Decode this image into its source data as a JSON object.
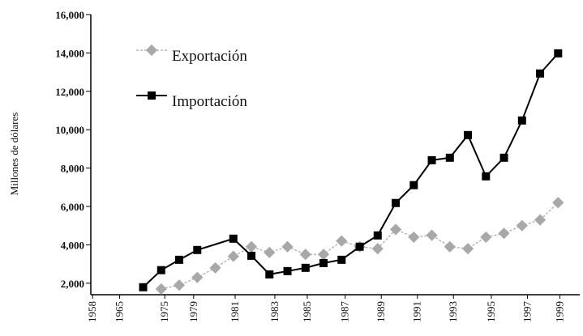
{
  "chart_data": {
    "type": "line",
    "y_axis_label": "Millones de dólares",
    "xlim": [
      1973.1,
      2000.2
    ],
    "xticks": [
      {
        "value": 1973.2,
        "label": "1958"
      },
      {
        "value": 1974.7,
        "label": "1965"
      },
      {
        "value": 1977.2,
        "label": "1975"
      },
      {
        "value": 1978.8,
        "label": "1979"
      },
      {
        "value": 1981.1,
        "label": "1981"
      },
      {
        "value": 1983.3,
        "label": "1983"
      },
      {
        "value": 1985.1,
        "label": "1985"
      },
      {
        "value": 1987.2,
        "label": "1987"
      },
      {
        "value": 1989.2,
        "label": "1989"
      },
      {
        "value": 1991.2,
        "label": "1991"
      },
      {
        "value": 1993.2,
        "label": "1993"
      },
      {
        "value": 1995.3,
        "label": "1995"
      },
      {
        "value": 1997.3,
        "label": "1997"
      },
      {
        "value": 1999.1,
        "label": "1999"
      }
    ],
    "ylim": [
      1400,
      16000
    ],
    "yticks": [
      {
        "value": 2000,
        "label": "2,000"
      },
      {
        "value": 4000,
        "label": "4,000"
      },
      {
        "value": 6000,
        "label": "6,000"
      },
      {
        "value": 8000,
        "label": "8,000"
      },
      {
        "value": 10000,
        "label": "10,000"
      },
      {
        "value": 12000,
        "label": "12,000"
      },
      {
        "value": 14000,
        "label": "14,000"
      },
      {
        "value": 16000,
        "label": "16,000"
      }
    ],
    "series": [
      {
        "name": "Exportación",
        "color": "#a8a8a8",
        "x": [
          1977,
          1978,
          1979,
          1980,
          1981,
          1982,
          1983,
          1984,
          1985,
          1986,
          1987,
          1988,
          1989,
          1990,
          1991,
          1992,
          1993,
          1994,
          1995,
          1996,
          1997,
          1998,
          1999
        ],
        "values": [
          1700,
          1900,
          2300,
          2800,
          3400,
          3900,
          3600,
          3900,
          3500,
          3500,
          4200,
          3900,
          3800,
          4800,
          4400,
          4500,
          3900,
          3800,
          4400,
          4600,
          5000,
          5300,
          6200
        ]
      },
      {
        "name": "Importación",
        "color": "#000000",
        "x": [
          1976,
          1977,
          1978,
          1979,
          1981,
          1982,
          1983,
          1984,
          1985,
          1986,
          1987,
          1988,
          1989,
          1990,
          1991,
          1992,
          1993,
          1994,
          1995,
          1996,
          1997,
          1998,
          1999
        ],
        "values": [
          1790,
          2680,
          3220,
          3730,
          4320,
          3430,
          2460,
          2630,
          2800,
          3050,
          3220,
          3900,
          4490,
          6180,
          7110,
          8410,
          8540,
          9720,
          7570,
          8540,
          10480,
          12930,
          13980
        ]
      }
    ]
  }
}
